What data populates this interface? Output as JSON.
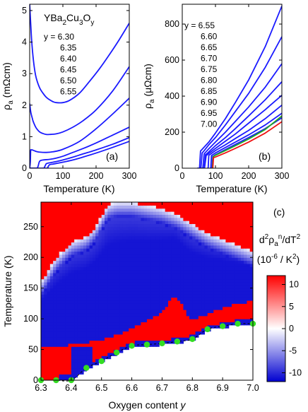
{
  "chart_data": [
    {
      "panel": "(a)",
      "type": "line",
      "compound_label": {
        "base": "YBa",
        "sub1": "2",
        "mid": "Cu",
        "sub2": "3",
        "end": "O",
        "sub3": "y"
      },
      "xlabel": "Temperature (K)",
      "ylabel": {
        "rho": "ρ",
        "sub": "a",
        "unit": " (mΩcm)"
      },
      "xlim": [
        0,
        300
      ],
      "ylim": [
        0,
        5.2
      ],
      "xticks": [
        "0",
        "100",
        "200",
        "300"
      ],
      "yticks": [
        "0",
        "1",
        "2",
        "3",
        "4",
        "5"
      ],
      "legend_prefix": "y = ",
      "legend": [
        "6.30",
        "6.35",
        "6.40",
        "6.45",
        "6.50",
        "6.55"
      ],
      "color": "#1a1aff",
      "series": [
        {
          "x": [
            0,
            3,
            6,
            10,
            15,
            20,
            30,
            40,
            50,
            60,
            70,
            80,
            100,
            120,
            150,
            180,
            210,
            240,
            270,
            300
          ],
          "y": [
            5.2,
            4.6,
            4.05,
            3.55,
            3.12,
            2.85,
            2.55,
            2.38,
            2.25,
            2.17,
            2.11,
            2.08,
            2.08,
            2.15,
            2.38,
            2.75,
            3.15,
            3.6,
            4.08,
            4.6
          ]
        },
        {
          "x": [
            0,
            3,
            5,
            8,
            10,
            15,
            20,
            30,
            40,
            50,
            60,
            80,
            100,
            130,
            160,
            200,
            250,
            300
          ],
          "y": [
            2.05,
            1.8,
            1.7,
            1.58,
            1.5,
            1.37,
            1.27,
            1.15,
            1.1,
            1.07,
            1.07,
            1.09,
            1.15,
            1.3,
            1.5,
            1.85,
            2.45,
            3.22
          ]
        },
        {
          "x": [
            0,
            2,
            3,
            5,
            8,
            10,
            15,
            20,
            30,
            50,
            70,
            100,
            150,
            200,
            250,
            300
          ],
          "y": [
            0,
            0.2,
            0.55,
            0.58,
            0.58,
            0.57,
            0.55,
            0.53,
            0.51,
            0.5,
            0.52,
            0.6,
            0.85,
            1.25,
            1.72,
            2.22
          ]
        },
        {
          "x": [
            0,
            20,
            25,
            30,
            40,
            60,
            80,
            100,
            130,
            160,
            200,
            250,
            300
          ],
          "y": [
            0,
            0,
            0.05,
            0.22,
            0.26,
            0.28,
            0.32,
            0.38,
            0.5,
            0.62,
            0.8,
            1.05,
            1.3
          ]
        },
        {
          "x": [
            0,
            40,
            45,
            50,
            60,
            80,
            100,
            130,
            160,
            200,
            250,
            300
          ],
          "y": [
            0,
            0,
            0.04,
            0.14,
            0.17,
            0.21,
            0.26,
            0.35,
            0.45,
            0.58,
            0.76,
            0.97
          ]
        },
        {
          "x": [
            0,
            50,
            55,
            60,
            70,
            80,
            100,
            130,
            160,
            200,
            250,
            300
          ],
          "y": [
            0,
            0,
            0.04,
            0.11,
            0.13,
            0.15,
            0.19,
            0.26,
            0.35,
            0.48,
            0.66,
            0.85
          ]
        }
      ]
    },
    {
      "panel": "(b)",
      "type": "line",
      "xlabel": "Temperature (K)",
      "ylabel": {
        "rho": "ρ",
        "sub": "a",
        "unit": " (μΩcm)"
      },
      "xlim": [
        0,
        300
      ],
      "ylim": [
        0,
        910
      ],
      "xticks": [
        "0",
        "100",
        "200",
        "300"
      ],
      "yticks": [
        "0",
        "200",
        "400",
        "600",
        "800"
      ],
      "legend_prefix": "y = ",
      "legend": [
        "6.55",
        "6.60",
        "6.65",
        "6.70",
        "6.75",
        "6.80",
        "6.85",
        "6.90",
        "6.95",
        "7.00"
      ],
      "colors": {
        "main": "#1a1aff",
        "green": "#22aa22",
        "red": "#ee1111"
      },
      "series": [
        {
          "color": "main",
          "x": [
            45,
            52,
            55,
            60,
            80,
            100,
            130,
            160,
            200,
            250,
            300
          ],
          "y": [
            0,
            0,
            95,
            105,
            145,
            195,
            275,
            365,
            490,
            675,
            900
          ]
        },
        {
          "color": "main",
          "x": [
            50,
            56,
            60,
            65,
            80,
            100,
            130,
            160,
            200,
            250,
            300
          ],
          "y": [
            0,
            0,
            85,
            95,
            130,
            170,
            240,
            315,
            415,
            560,
            730
          ]
        },
        {
          "color": "main",
          "x": [
            58,
            62,
            66,
            70,
            80,
            100,
            130,
            160,
            200,
            250,
            300
          ],
          "y": [
            0,
            0,
            80,
            88,
            108,
            145,
            200,
            260,
            340,
            450,
            580
          ]
        },
        {
          "color": "main",
          "x": [
            62,
            66,
            70,
            75,
            100,
            130,
            160,
            200,
            250,
            300
          ],
          "y": [
            0,
            0,
            75,
            82,
            125,
            170,
            220,
            290,
            380,
            480
          ]
        },
        {
          "color": "main",
          "x": [
            63,
            67,
            72,
            76,
            100,
            130,
            160,
            200,
            250,
            300
          ],
          "y": [
            0,
            0,
            70,
            76,
            110,
            150,
            190,
            250,
            325,
            405
          ]
        },
        {
          "color": "main",
          "x": [
            75,
            78,
            80,
            85,
            100,
            130,
            160,
            200,
            250,
            300
          ],
          "y": [
            0,
            0,
            72,
            78,
            98,
            130,
            165,
            210,
            275,
            350
          ]
        },
        {
          "color": "main",
          "x": [
            83,
            86,
            88,
            92,
            100,
            130,
            160,
            200,
            250,
            300
          ],
          "y": [
            0,
            0,
            70,
            75,
            85,
            115,
            145,
            185,
            240,
            305
          ]
        },
        {
          "color": "main",
          "x": [
            88,
            90,
            92,
            95,
            100,
            130,
            160,
            200,
            250,
            300
          ],
          "y": [
            0,
            0,
            65,
            68,
            75,
            103,
            132,
            170,
            220,
            280
          ]
        },
        {
          "color": "green",
          "x": [
            89,
            91,
            93,
            95,
            100,
            130,
            160,
            200,
            250,
            300
          ],
          "y": [
            0,
            0,
            62,
            66,
            72,
            98,
            125,
            162,
            215,
            290
          ]
        },
        {
          "color": "red",
          "x": [
            90,
            92,
            94,
            100,
            130,
            160,
            200,
            250,
            300
          ],
          "y": [
            0,
            0,
            58,
            62,
            85,
            110,
            145,
            195,
            258
          ]
        }
      ]
    },
    {
      "panel": "(c)",
      "type": "heatmap",
      "xlabel": {
        "text": "Oxygen content ",
        "var": "y"
      },
      "ylabel": "Temperature (K)",
      "xlim": [
        6.3,
        7.0
      ],
      "ylim": [
        0,
        290
      ],
      "xticks": [
        "6.3",
        "6.4",
        "6.5",
        "6.6",
        "6.7",
        "6.8",
        "6.9",
        "7.0"
      ],
      "yticks": [
        "0",
        "50",
        "100",
        "150",
        "200",
        "250"
      ],
      "colorbar": {
        "title_line1": {
          "d": "d",
          "sup2": "2",
          "rho": "ρ",
          "sub_a": "a",
          "sup_n": "n",
          "rest": "/dT",
          "sup2b": "2"
        },
        "title_line2": {
          "open": "(10",
          "sup": "-6",
          "rest": " / K",
          "sup2": "2",
          "close": ")"
        },
        "ticks": [
          "10",
          "5",
          "0",
          "-5",
          "-10"
        ],
        "range": [
          -12,
          12
        ],
        "colors": [
          "#0000d0",
          "#ffffff",
          "#ff0000"
        ]
      },
      "tc_points": {
        "color": "#33dd22",
        "y": [
          6.3,
          6.35,
          6.4,
          6.45,
          6.5,
          6.55,
          6.6,
          6.65,
          6.7,
          6.75,
          6.8,
          6.85,
          6.9,
          6.95,
          7.0
        ],
        "Tc": [
          0,
          0,
          0,
          20,
          31,
          45,
          56,
          58,
          60,
          63,
          67,
          83,
          88,
          92,
          92
        ]
      },
      "red_blue_boundary": {
        "y": [
          6.3,
          6.35,
          6.4,
          6.45,
          6.5,
          6.55,
          6.6,
          6.65,
          6.7,
          6.72,
          6.74,
          6.76,
          6.78,
          6.8,
          6.85,
          6.9,
          6.95,
          7.0
        ],
        "T": [
          55,
          55,
          58,
          62,
          66,
          74,
          85,
          96,
          112,
          125,
          140,
          128,
          110,
          100,
          108,
          118,
          125,
          130
        ]
      },
      "upper_boundary": {
        "y": [
          6.3,
          6.35,
          6.4,
          6.45,
          6.48,
          6.52,
          6.55,
          6.6,
          6.65,
          6.7,
          6.75,
          6.8,
          6.85,
          6.9,
          6.95,
          7.0
        ],
        "T": [
          160,
          200,
          225,
          235,
          250,
          285,
          290,
          290,
          285,
          280,
          270,
          255,
          240,
          230,
          220,
          210
        ]
      },
      "top_red_patch": {
        "y": [
          6.84,
          6.92
        ],
        "T": [
          268,
          290
        ]
      }
    }
  ]
}
